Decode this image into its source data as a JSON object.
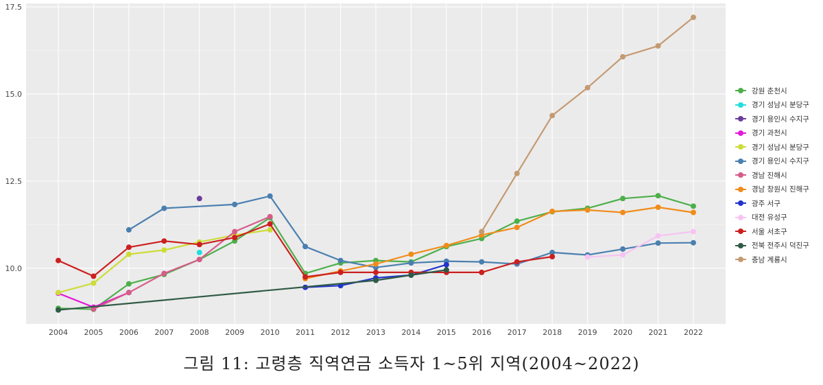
{
  "chart_data": {
    "type": "line",
    "title": "",
    "caption": "그림 11: 고령층 직역연금 소득자 1~5위 지역(2004~2022)",
    "xlabel": "",
    "ylabel": "",
    "x": [
      2004,
      2005,
      2006,
      2007,
      2008,
      2009,
      2010,
      2011,
      2012,
      2013,
      2014,
      2015,
      2016,
      2017,
      2018,
      2019,
      2020,
      2021,
      2022
    ],
    "ylim": [
      8.4,
      17.6
    ],
    "yticks": [
      10.0,
      12.5,
      15.0,
      17.5
    ],
    "ytick_labels": [
      "10.0",
      "12.5",
      "15.0",
      "17.5"
    ],
    "grid": true,
    "legend_position": "right",
    "series": [
      {
        "name": "강원 춘천시",
        "color": "#4daf4a",
        "values": [
          8.85,
          8.82,
          9.55,
          9.82,
          10.25,
          10.78,
          11.45,
          9.85,
          10.15,
          10.22,
          10.18,
          10.62,
          10.85,
          11.35,
          11.62,
          11.72,
          12.0,
          12.08,
          11.78
        ]
      },
      {
        "name": "경기  성남시 분당구",
        "color": "#22dddd",
        "values": [
          null,
          null,
          null,
          null,
          10.45,
          null,
          null,
          null,
          null,
          null,
          null,
          null,
          null,
          null,
          null,
          null,
          null,
          null,
          null
        ]
      },
      {
        "name": "경기  용인시 수지구",
        "color": "#6a3d9a",
        "values": [
          null,
          null,
          null,
          null,
          12.0,
          null,
          null,
          null,
          null,
          null,
          null,
          null,
          null,
          null,
          null,
          null,
          null,
          null,
          null
        ]
      },
      {
        "name": "경기 과천시",
        "color": "#e41ad9",
        "values": [
          9.28,
          8.88,
          9.3,
          null,
          null,
          null,
          null,
          null,
          null,
          null,
          null,
          null,
          null,
          null,
          null,
          null,
          null,
          null,
          null
        ]
      },
      {
        "name": "경기 성남시 분당구",
        "color": "#cddc39",
        "values": [
          9.3,
          9.57,
          10.4,
          10.52,
          10.75,
          10.95,
          11.1,
          null,
          null,
          null,
          null,
          null,
          null,
          null,
          null,
          null,
          null,
          null,
          null
        ]
      },
      {
        "name": "경기 용인시 수지구",
        "color": "#4a7fb0",
        "values": [
          null,
          null,
          11.1,
          11.72,
          null,
          11.83,
          12.07,
          10.62,
          10.22,
          10.02,
          10.15,
          10.2,
          10.18,
          10.12,
          10.45,
          10.38,
          10.55,
          10.72,
          10.73
        ]
      },
      {
        "name": "경남 진해시",
        "color": "#d65c8a",
        "values": [
          null,
          8.83,
          9.3,
          9.85,
          10.25,
          11.05,
          11.48,
          null,
          null,
          null,
          null,
          null,
          null,
          null,
          null,
          null,
          null,
          null,
          null
        ]
      },
      {
        "name": "경남 창원시 진해구",
        "color": "#f08c1a",
        "values": [
          null,
          null,
          null,
          null,
          null,
          null,
          null,
          9.7,
          9.92,
          10.12,
          10.4,
          10.65,
          10.95,
          11.17,
          11.63,
          11.67,
          11.6,
          11.75,
          11.6
        ]
      },
      {
        "name": "광주 서구",
        "color": "#2233cc",
        "values": [
          null,
          null,
          null,
          null,
          null,
          null,
          null,
          9.45,
          9.5,
          9.72,
          9.8,
          10.1,
          null,
          null,
          null,
          null,
          null,
          null,
          null
        ]
      },
      {
        "name": "대전 유성구",
        "color": "#f7c4f2",
        "values": [
          null,
          null,
          null,
          null,
          null,
          null,
          null,
          null,
          null,
          null,
          null,
          null,
          null,
          null,
          null,
          10.32,
          10.38,
          10.93,
          11.05
        ]
      },
      {
        "name": "서울 서초구",
        "color": "#cc1f1f",
        "values": [
          10.22,
          9.77,
          10.6,
          10.78,
          10.68,
          10.88,
          11.27,
          9.75,
          9.88,
          9.88,
          9.88,
          9.88,
          9.88,
          10.18,
          10.33,
          null,
          null,
          null,
          null
        ]
      },
      {
        "name": "전북 전주시 덕진구",
        "color": "#2f5a46",
        "values": [
          8.8,
          null,
          null,
          null,
          null,
          null,
          null,
          null,
          null,
          9.65,
          9.8,
          9.95,
          null,
          null,
          null,
          null,
          null,
          null,
          null
        ]
      },
      {
        "name": "충남 계룡시",
        "color": "#c49a72",
        "values": [
          null,
          null,
          null,
          null,
          null,
          null,
          null,
          null,
          null,
          null,
          null,
          null,
          11.05,
          12.72,
          14.38,
          15.18,
          16.07,
          16.38,
          17.2
        ]
      }
    ]
  }
}
